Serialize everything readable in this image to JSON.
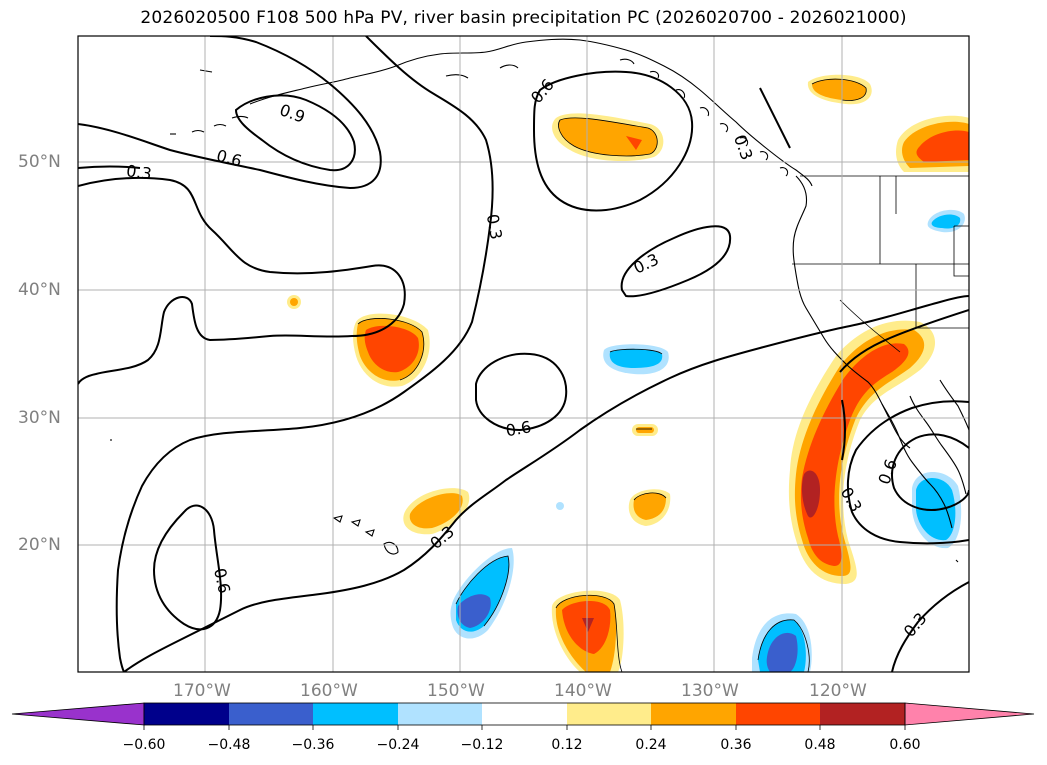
{
  "title": "2026020500 F108 500 hPa PV, river basin precipitation PC (2026020700 - 2026021000)",
  "axes": {
    "lat_labels": [
      "50°N",
      "40°N",
      "30°N",
      "20°N"
    ],
    "lon_labels": [
      "170°W",
      "160°W",
      "150°W",
      "140°W",
      "130°W",
      "120°W"
    ]
  },
  "contour_labels": [
    "0.9",
    "0.6",
    "0.3",
    "0.6",
    "0.3",
    "0.3",
    "0.6",
    "0.3",
    "0.6",
    "0.3",
    "0.6",
    "0.3",
    "0.3"
  ],
  "colorbar": {
    "ticks": [
      "−0.60",
      "−0.48",
      "−0.36",
      "−0.24",
      "−0.12",
      "0.12",
      "0.24",
      "0.36",
      "0.48",
      "0.60"
    ],
    "colors": [
      "#9932cc",
      "#00008b",
      "#3a5fcd",
      "#00bfff",
      "#b0e2ff",
      "#ffffff",
      "#ffec8b",
      "#ffa500",
      "#ff4500",
      "#b22222",
      "#ff82ab"
    ]
  },
  "chart_data": {
    "type": "map",
    "title": "2026020500 F108 500 hPa PV, river basin precipitation PC (2026020700 - 2026021000)",
    "region": {
      "lon_range": [
        -180,
        -110
      ],
      "lat_range": [
        10,
        60
      ]
    },
    "contour_field": "500 hPa PV",
    "contour_levels": [
      0.3,
      0.6,
      0.9
    ],
    "shaded_field": "river basin precipitation PC",
    "shading_levels": [
      -0.6,
      -0.48,
      -0.36,
      -0.24,
      -0.12,
      0.12,
      0.24,
      0.36,
      0.48,
      0.6
    ],
    "lat_ticks": [
      "50°N",
      "40°N",
      "30°N",
      "20°N"
    ],
    "lon_ticks": [
      "170°W",
      "160°W",
      "150°W",
      "140°W",
      "130°W",
      "120°W"
    ]
  }
}
